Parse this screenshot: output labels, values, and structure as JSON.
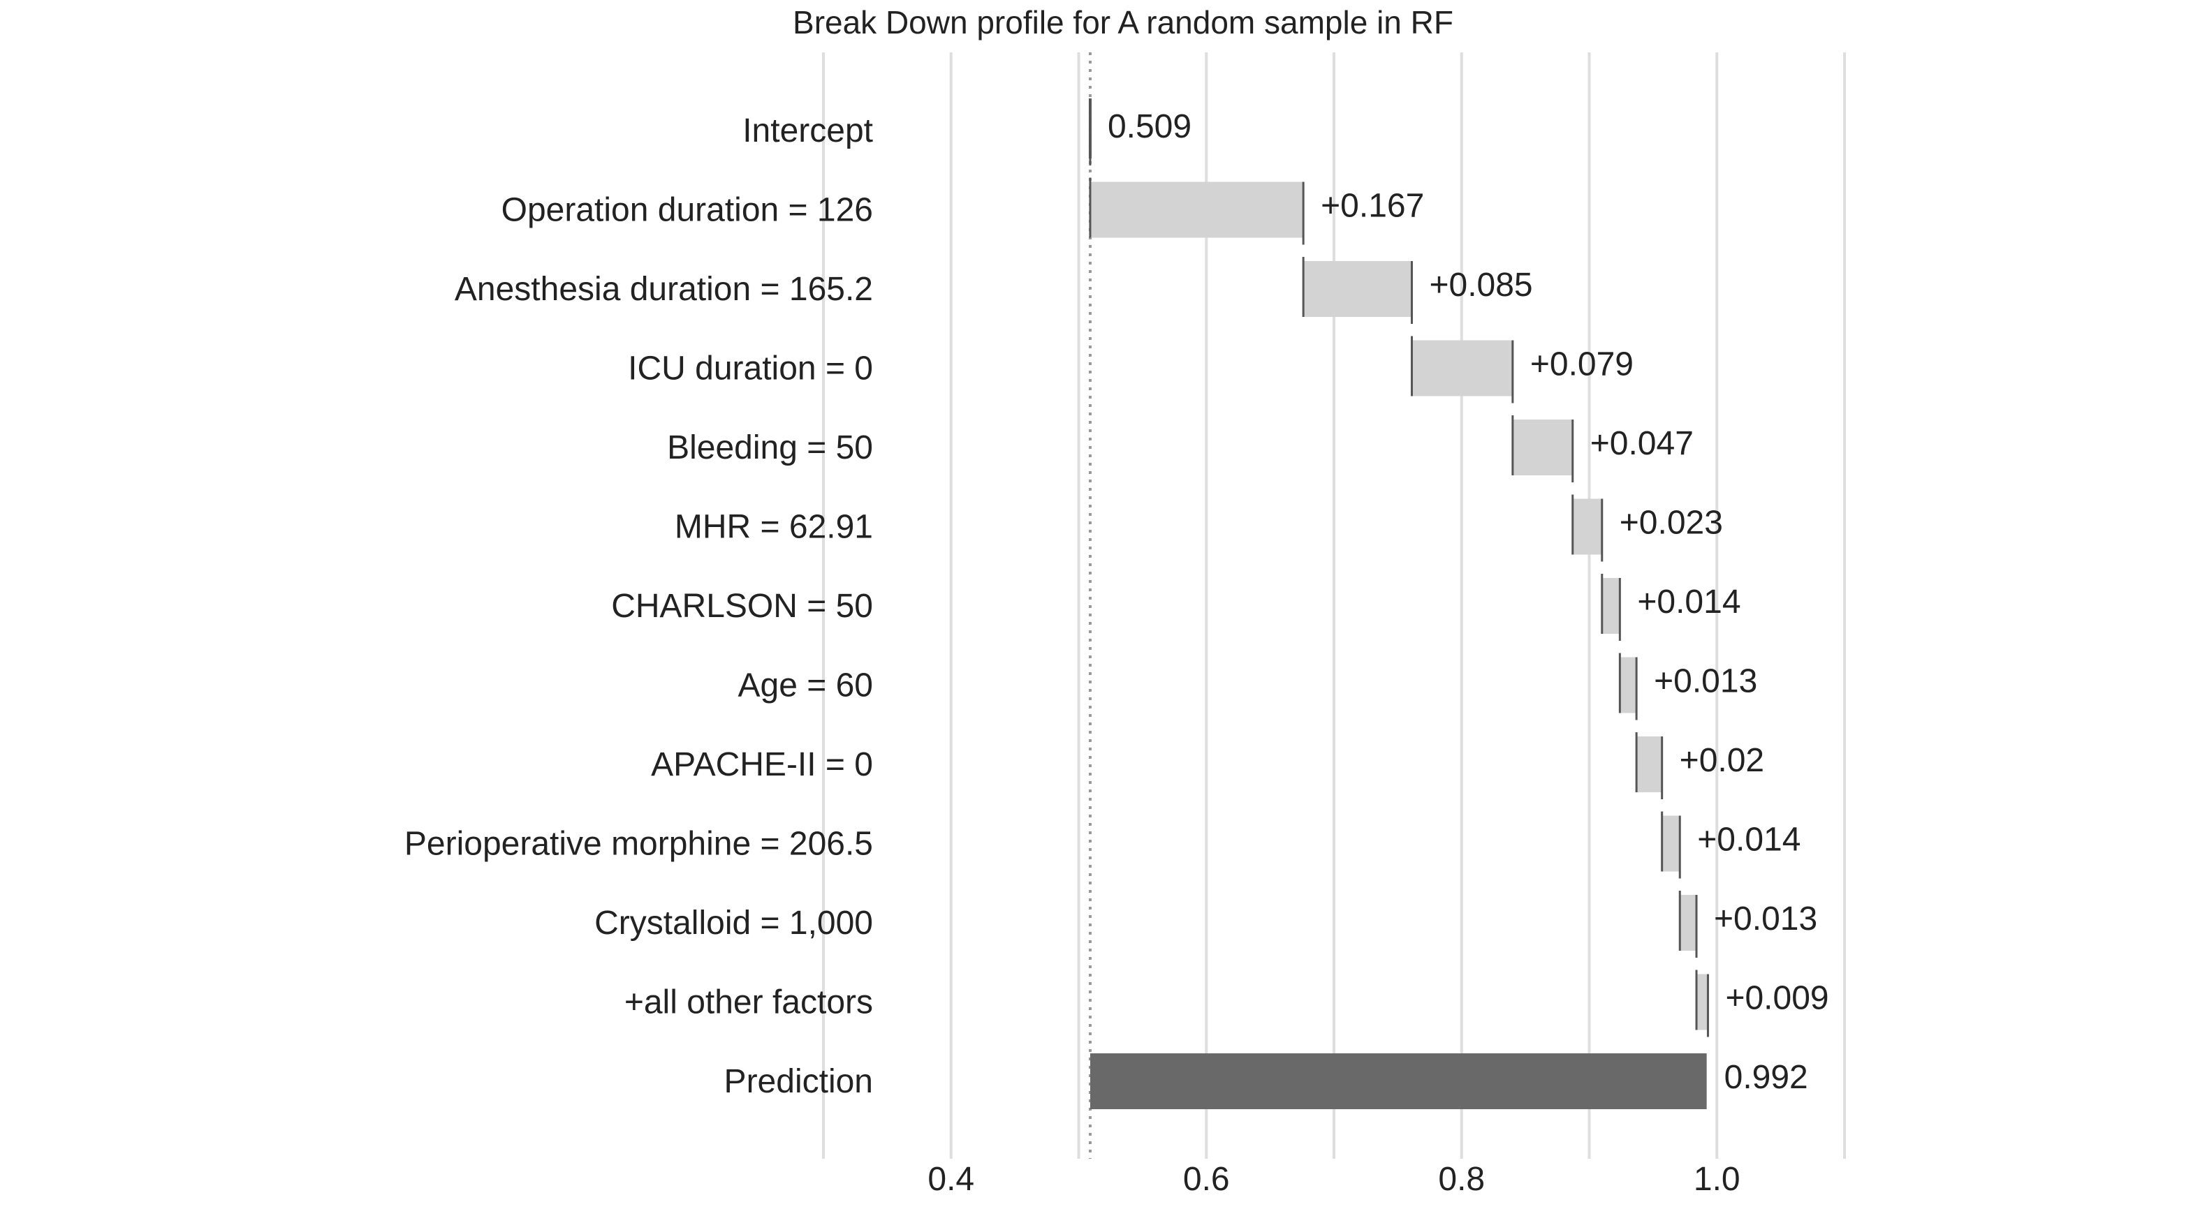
{
  "chart_data": {
    "type": "bar",
    "subtype": "waterfall",
    "title": "Break Down profile for A random sample in RF",
    "xlabel": "",
    "ylabel": "",
    "xlim": [
      0.3,
      1.1
    ],
    "xticks": [
      0.4,
      0.6,
      0.8,
      1.0
    ],
    "xtick_labels": [
      "0.4",
      "0.6",
      "0.8",
      "1.0"
    ],
    "gridlines": [
      0.3,
      0.4,
      0.5,
      0.6,
      0.7,
      0.8,
      0.9,
      1.0,
      1.1
    ],
    "grid": true,
    "baseline": 0.509,
    "categories": [
      "Intercept",
      "Operation duration = 126",
      "Anesthesia duration = 165.2",
      "ICU duration = 0",
      "Bleeding = 50",
      "MHR = 62.91",
      "CHARLSON = 50",
      "Age = 60",
      "APACHE-II = 0",
      "Perioperative morphine = 206.5",
      "Crystalloid = 1,000",
      "+all other factors",
      "Prediction"
    ],
    "values": [
      0.509,
      0.167,
      0.085,
      0.079,
      0.047,
      0.023,
      0.014,
      0.013,
      0.02,
      0.014,
      0.013,
      0.009,
      0.992
    ],
    "value_labels": [
      "0.509",
      "+0.167",
      "+0.085",
      "+0.079",
      "+0.047",
      "+0.023",
      "+0.014",
      "+0.013",
      "+0.02",
      "+0.014",
      "+0.013",
      "+0.009",
      "0.992"
    ],
    "kinds": [
      "intercept",
      "contribution",
      "contribution",
      "contribution",
      "contribution",
      "contribution",
      "contribution",
      "contribution",
      "contribution",
      "contribution",
      "contribution",
      "contribution",
      "prediction"
    ],
    "colors": {
      "contribution": "#d3d3d3",
      "prediction": "#696969",
      "connector": "#555555",
      "grid": "#dedede",
      "baseline": "#999999",
      "text": "#222222"
    }
  }
}
